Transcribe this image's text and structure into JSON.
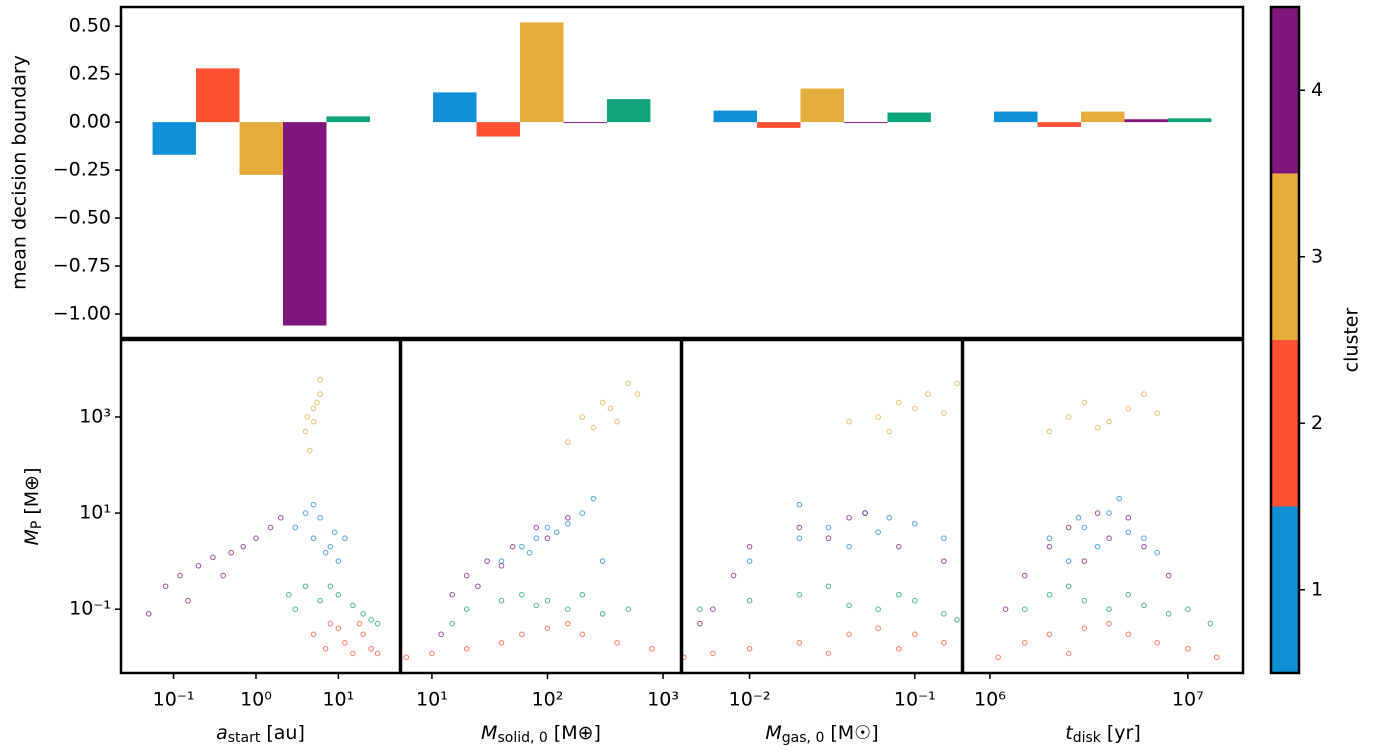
{
  "chart_data": [
    {
      "type": "bar",
      "ylabel": "mean decision boundary",
      "categories": [
        null,
        null,
        null,
        null
      ],
      "series": [
        {
          "color": "#0f8fd5",
          "values": [
            -0.17,
            0.155,
            0.06,
            0.055
          ]
        },
        {
          "color": "#fe5133",
          "values": [
            0.28,
            -0.075,
            -0.03,
            -0.025
          ]
        },
        {
          "color": "#e6ac3c",
          "values": [
            -0.275,
            0.52,
            0.175,
            0.055
          ]
        },
        {
          "color": "#80167b",
          "values": [
            -1.06,
            -0.005,
            -0.005,
            0.015
          ]
        },
        {
          "color": "#0fa47a",
          "values": [
            0.03,
            0.12,
            0.05,
            0.02
          ]
        }
      ],
      "ylim": [
        -1.125,
        0.6
      ],
      "yticks": [
        {
          "value": 0.5,
          "label": "0.50"
        },
        {
          "value": 0.25,
          "label": "0.25"
        },
        {
          "value": 0,
          "label": "0.00"
        },
        {
          "value": -0.25,
          "label": "−0.25"
        },
        {
          "value": -0.5,
          "label": "−0.50"
        },
        {
          "value": -0.75,
          "label": "−0.75"
        },
        {
          "value": -1,
          "label": "−1.00"
        }
      ]
    },
    {
      "type": "scatter",
      "xscale": "log",
      "yscale": "log",
      "xlabel": {
        "symbol": "a",
        "sub": "start",
        "unit": "[au]"
      },
      "ylabel": {
        "symbol": "M",
        "sub": "P",
        "unit": "[M⊕]"
      },
      "xlim": [
        0.023,
        56
      ],
      "ylim": [
        0.0047,
        40000
      ],
      "xticks": [
        {
          "value": 0.1,
          "label": "10⁻¹"
        },
        {
          "value": 1,
          "label": "10⁰"
        },
        {
          "value": 10,
          "label": "10¹"
        }
      ],
      "yticks": [
        {
          "value": 0.1,
          "label": "10⁻¹"
        },
        {
          "value": 10,
          "label": "10¹"
        },
        {
          "value": 1000,
          "label": "10³"
        }
      ],
      "series": [
        {
          "color": "#0f8fd5",
          "x": [
            3,
            4,
            5,
            6,
            8,
            10,
            12,
            5,
            7,
            9
          ],
          "y": [
            5,
            10,
            3,
            8,
            2,
            1,
            3,
            15,
            1.5,
            4
          ]
        },
        {
          "color": "#fe5133",
          "x": [
            5,
            7,
            10,
            12,
            15,
            20,
            25,
            30,
            8,
            18
          ],
          "y": [
            0.03,
            0.015,
            0.04,
            0.02,
            0.012,
            0.03,
            0.015,
            0.012,
            0.05,
            0.05
          ]
        },
        {
          "color": "#e6ac3c",
          "x": [
            4,
            5,
            6,
            5,
            4.5,
            6,
            5.5,
            4.2
          ],
          "y": [
            500,
            1500,
            3000,
            800,
            200,
            6000,
            2000,
            1000
          ]
        },
        {
          "color": "#80167b",
          "x": [
            0.05,
            0.08,
            0.12,
            0.2,
            0.3,
            0.5,
            0.7,
            1,
            1.5,
            2,
            0.15,
            0.4
          ],
          "y": [
            0.08,
            0.3,
            0.5,
            0.8,
            1.2,
            1.5,
            2,
            3,
            5,
            8,
            0.15,
            0.5
          ]
        },
        {
          "color": "#0fa47a",
          "x": [
            2.5,
            3,
            4,
            6,
            10,
            15,
            20,
            25,
            8,
            30
          ],
          "y": [
            0.2,
            0.1,
            0.3,
            0.15,
            0.2,
            0.12,
            0.08,
            0.06,
            0.3,
            0.05
          ]
        }
      ]
    },
    {
      "type": "scatter",
      "xscale": "log",
      "yscale": "log",
      "xlabel": {
        "symbol": "M",
        "sub": "solid, 0",
        "unit": "[M⊕]"
      },
      "xlim": [
        5.4,
        1430
      ],
      "ylim": [
        0.0047,
        40000
      ],
      "xticks": [
        {
          "value": 10,
          "label": "10¹"
        },
        {
          "value": 100,
          "label": "10²"
        },
        {
          "value": 1000,
          "label": "10³"
        }
      ],
      "series": [
        {
          "color": "#0f8fd5",
          "x": [
            40,
            60,
            80,
            100,
            150,
            200,
            250,
            120,
            300,
            70
          ],
          "y": [
            1,
            2,
            3,
            5,
            6,
            10,
            20,
            4,
            1,
            1.5
          ]
        },
        {
          "color": "#fe5133",
          "x": [
            6,
            10,
            20,
            40,
            60,
            100,
            200,
            400,
            800,
            150
          ],
          "y": [
            0.01,
            0.012,
            0.015,
            0.02,
            0.03,
            0.04,
            0.03,
            0.02,
            0.015,
            0.05
          ]
        },
        {
          "color": "#e6ac3c",
          "x": [
            150,
            200,
            300,
            400,
            500,
            250,
            600,
            350
          ],
          "y": [
            300,
            1000,
            2000,
            800,
            5000,
            600,
            3000,
            1500
          ]
        },
        {
          "color": "#80167b",
          "x": [
            12,
            15,
            20,
            30,
            50,
            80,
            100,
            150,
            40,
            25
          ],
          "y": [
            0.03,
            0.2,
            0.5,
            1,
            2,
            5,
            3,
            8,
            0.8,
            0.3
          ]
        },
        {
          "color": "#0fa47a",
          "x": [
            15,
            20,
            40,
            60,
            100,
            150,
            200,
            300,
            500,
            80
          ],
          "y": [
            0.05,
            0.1,
            0.15,
            0.2,
            0.15,
            0.1,
            0.2,
            0.08,
            0.1,
            0.12
          ]
        }
      ]
    },
    {
      "type": "scatter",
      "xscale": "log",
      "yscale": "log",
      "xlabel": {
        "symbol": "M",
        "sub": "gas, 0",
        "unit": "[M☉]"
      },
      "xlim": [
        0.0039,
        0.193
      ],
      "ylim": [
        0.0047,
        40000
      ],
      "xticks": [
        {
          "value": 0.01,
          "label": "10⁻²"
        },
        {
          "value": 0.1,
          "label": "10⁻¹"
        }
      ],
      "series": [
        {
          "color": "#0f8fd5",
          "x": [
            0.01,
            0.02,
            0.03,
            0.05,
            0.07,
            0.1,
            0.15,
            0.04,
            0.02,
            0.06
          ],
          "y": [
            1,
            3,
            5,
            10,
            8,
            6,
            3,
            2,
            15,
            4
          ]
        },
        {
          "color": "#fe5133",
          "x": [
            0.004,
            0.006,
            0.01,
            0.02,
            0.04,
            0.06,
            0.1,
            0.15,
            0.03,
            0.08
          ],
          "y": [
            0.01,
            0.012,
            0.015,
            0.02,
            0.03,
            0.04,
            0.03,
            0.02,
            0.012,
            0.015
          ]
        },
        {
          "color": "#e6ac3c",
          "x": [
            0.04,
            0.06,
            0.08,
            0.1,
            0.12,
            0.15,
            0.07,
            0.18
          ],
          "y": [
            800,
            1000,
            2000,
            1500,
            3000,
            1200,
            500,
            5000
          ]
        },
        {
          "color": "#80167b",
          "x": [
            0.005,
            0.008,
            0.01,
            0.02,
            0.03,
            0.05,
            0.08,
            0.15,
            0.006,
            0.04
          ],
          "y": [
            0.05,
            0.5,
            2,
            5,
            3,
            10,
            2,
            1,
            0.1,
            8
          ]
        },
        {
          "color": "#0fa47a",
          "x": [
            0.005,
            0.01,
            0.02,
            0.04,
            0.06,
            0.1,
            0.15,
            0.03,
            0.08,
            0.18
          ],
          "y": [
            0.1,
            0.15,
            0.2,
            0.12,
            0.1,
            0.15,
            0.08,
            0.3,
            0.2,
            0.06
          ]
        }
      ]
    },
    {
      "type": "scatter",
      "xscale": "log",
      "yscale": "log",
      "xlabel": {
        "symbol": "t",
        "sub": "disk",
        "unit": "[yr]"
      },
      "xlim": [
        731000,
        19000000
      ],
      "ylim": [
        0.0047,
        40000
      ],
      "xticks": [
        {
          "value": 1000000,
          "label": "10⁶"
        },
        {
          "value": 10000000,
          "label": "10⁷"
        }
      ],
      "series": [
        {
          "color": "#0f8fd5",
          "x": [
            2000000,
            2500000,
            3000000,
            3500000,
            4000000,
            5000000,
            6000000,
            7000000,
            4500000,
            2800000
          ],
          "y": [
            3,
            1,
            5,
            2,
            10,
            4,
            3,
            1.5,
            20,
            8
          ]
        },
        {
          "color": "#fe5133",
          "x": [
            1100000,
            1500000,
            2000000,
            3000000,
            4000000,
            5000000,
            7000000,
            10000000,
            14000000,
            2500000
          ],
          "y": [
            0.01,
            0.02,
            0.03,
            0.04,
            0.05,
            0.03,
            0.02,
            0.015,
            0.01,
            0.012
          ]
        },
        {
          "color": "#e6ac3c",
          "x": [
            2000000,
            2500000,
            3000000,
            4000000,
            5000000,
            6000000,
            3500000,
            7000000
          ],
          "y": [
            500,
            1000,
            2000,
            800,
            1500,
            3000,
            600,
            1200
          ]
        },
        {
          "color": "#80167b",
          "x": [
            1500000,
            2000000,
            2500000,
            3000000,
            4000000,
            5000000,
            6000000,
            8000000,
            1200000,
            3500000
          ],
          "y": [
            0.5,
            2,
            5,
            1,
            3,
            8,
            2,
            0.5,
            0.1,
            10
          ]
        },
        {
          "color": "#0fa47a",
          "x": [
            1500000,
            2000000,
            3000000,
            4000000,
            5000000,
            6000000,
            8000000,
            10000000,
            2500000,
            13000000
          ],
          "y": [
            0.1,
            0.2,
            0.15,
            0.1,
            0.2,
            0.12,
            0.08,
            0.1,
            0.3,
            0.05
          ]
        }
      ]
    },
    {
      "type": "colorbar",
      "label": "cluster",
      "ylim": [
        0.5,
        4.5
      ],
      "yticks": [
        1,
        2,
        3,
        4
      ],
      "colors": [
        "#0f8fd5",
        "#fe5133",
        "#e6ac3c",
        "#80167b"
      ]
    }
  ]
}
